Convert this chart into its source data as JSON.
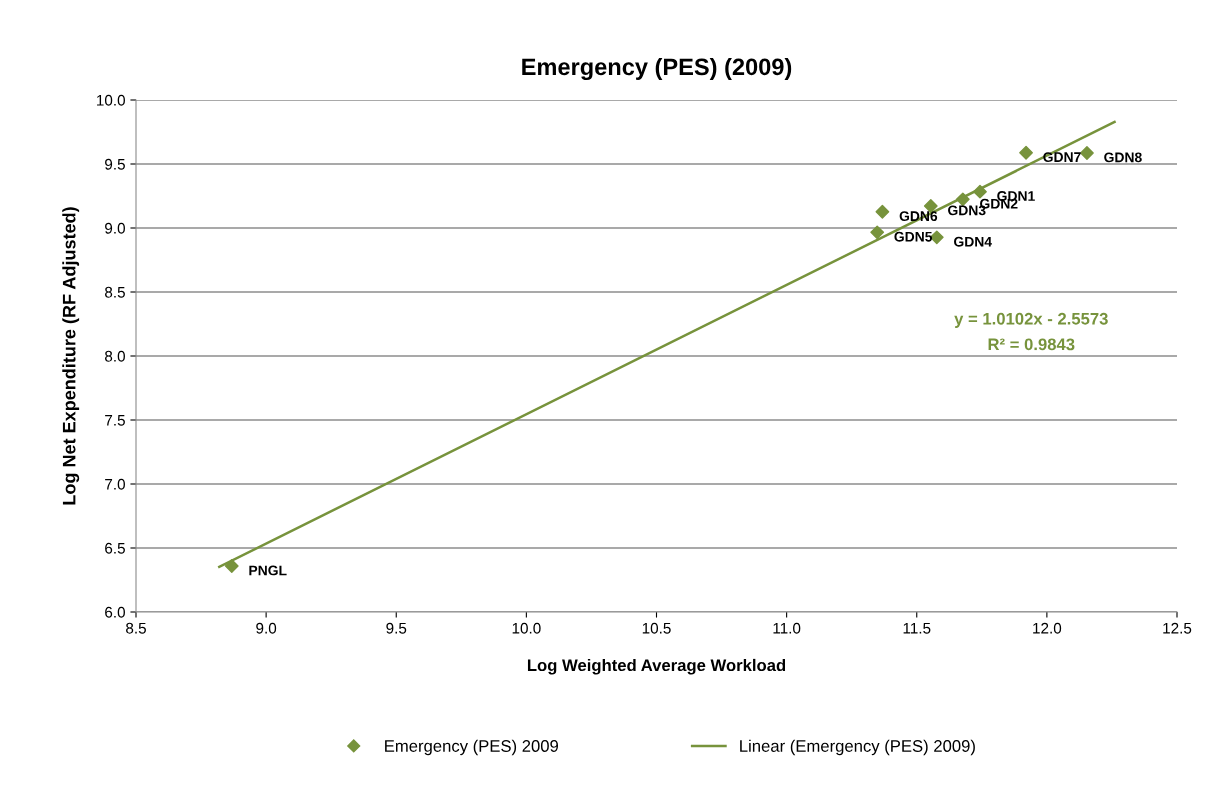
{
  "chart_data": {
    "type": "scatter",
    "title": "Emergency (PES) (2009)",
    "xlabel": "Log Weighted Average Workload",
    "ylabel": "Log Net Expenditure (RF Adjusted)",
    "series": [
      {
        "name": "Emergency (PES) 2009",
        "color": "#77933c",
        "marker": "diamond",
        "x": [
          8.868,
          11.743,
          11.677,
          11.554,
          11.577,
          11.348,
          11.368,
          11.92,
          12.154
        ],
        "values": [
          6.359,
          9.284,
          9.224,
          9.172,
          8.927,
          8.966,
          9.127,
          9.588,
          9.586
        ]
      },
      {
        "name": "Linear (Emergency (PES) 2009)",
        "type": "line",
        "color": "#77933c",
        "marker": "none",
        "line_style": "solid",
        "x": [
          8.82,
          12.26
        ],
        "values": [
          6.353,
          9.828
        ]
      }
    ],
    "annotations": [
      {
        "text": "PNGL",
        "x": 8.868,
        "y": 6.359
      },
      {
        "text": "GDN1",
        "x": 11.743,
        "y": 9.284
      },
      {
        "text": "GDN2",
        "x": 11.677,
        "y": 9.224
      },
      {
        "text": "GDN3",
        "x": 11.554,
        "y": 9.172
      },
      {
        "text": "GDN4",
        "x": 11.577,
        "y": 8.927
      },
      {
        "text": "GDN5",
        "x": 11.348,
        "y": 8.966
      },
      {
        "text": "GDN6",
        "x": 11.368,
        "y": 9.127
      },
      {
        "text": "GDN7",
        "x": 11.92,
        "y": 9.588
      },
      {
        "text": "GDN8",
        "x": 12.154,
        "y": 9.586
      },
      "y = 1.0102x - 2.5573",
      "R² = 0.9843"
    ],
    "xlim": [
      8.5,
      12.5
    ],
    "xticks": [
      {
        "value": 8.5,
        "label": "8.5"
      },
      {
        "value": 9.0,
        "label": "9.0"
      },
      {
        "value": 9.5,
        "label": "9.5"
      },
      {
        "value": 10.0,
        "label": "10.0"
      },
      {
        "value": 10.5,
        "label": "10.5"
      },
      {
        "value": 11.0,
        "label": "11.0"
      },
      {
        "value": 11.5,
        "label": "11.5"
      },
      {
        "value": 12.0,
        "label": "12.0"
      },
      {
        "value": 12.5,
        "label": "12.5"
      }
    ],
    "ylim": [
      6.0,
      10.0
    ],
    "yticks": [
      {
        "value": 6.0,
        "label": "6.0"
      },
      {
        "value": 6.5,
        "label": "6.5"
      },
      {
        "value": 7.0,
        "label": "7.0"
      },
      {
        "value": 7.5,
        "label": "7.5"
      },
      {
        "value": 8.0,
        "label": "8.0"
      },
      {
        "value": 8.5,
        "label": "8.5"
      },
      {
        "value": 9.0,
        "label": "9.0"
      },
      {
        "value": 9.5,
        "label": "9.5"
      },
      {
        "value": 10.0,
        "label": "10.0"
      }
    ],
    "grid": "y",
    "legend": "bottom"
  }
}
